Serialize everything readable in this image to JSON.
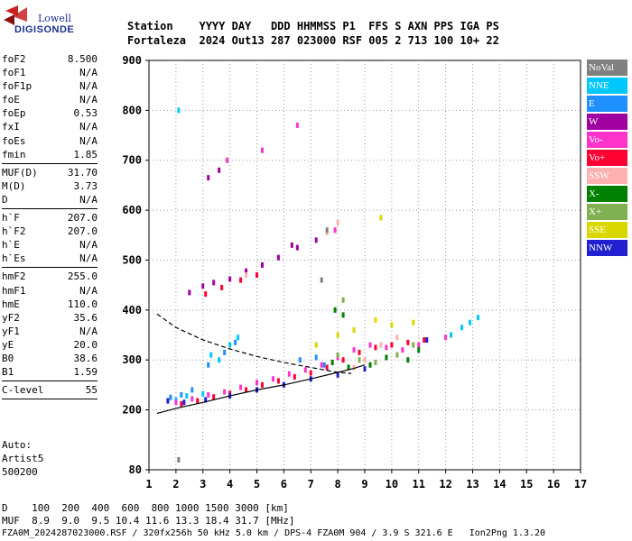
{
  "logo": {
    "line1": "Lowell",
    "line2": "DIGISONDE"
  },
  "header": {
    "line1": "Station    YYYY DAY   DDD HHMMSS P1  FFS S AXN PPS IGA PS",
    "line2": "Fortaleza  2024 Out13 287 023000 RSF 005 2 713 100 10+ 22"
  },
  "params": {
    "group1": [
      {
        "k": "foF2",
        "v": "8.500"
      },
      {
        "k": "foF1",
        "v": "N/A"
      },
      {
        "k": "foF1p",
        "v": "N/A"
      },
      {
        "k": "foE",
        "v": "N/A"
      },
      {
        "k": "foEp",
        "v": "0.53"
      },
      {
        "k": "fxI",
        "v": "N/A"
      },
      {
        "k": "foEs",
        "v": "N/A"
      },
      {
        "k": "fmin",
        "v": "1.85"
      }
    ],
    "group2": [
      {
        "k": "MUF(D)",
        "v": "31.70"
      },
      {
        "k": "M(D)",
        "v": "3.73"
      },
      {
        "k": "D",
        "v": "N/A"
      }
    ],
    "group3": [
      {
        "k": "h`F",
        "v": "207.0"
      },
      {
        "k": "h`F2",
        "v": "207.0"
      },
      {
        "k": "h`E",
        "v": "N/A"
      },
      {
        "k": "h`Es",
        "v": "N/A"
      }
    ],
    "group4": [
      {
        "k": "hmF2",
        "v": "255.0"
      },
      {
        "k": "hmF1",
        "v": "N/A"
      },
      {
        "k": "hmE",
        "v": "110.0"
      },
      {
        "k": "yF2",
        "v": "35.6"
      },
      {
        "k": "yF1",
        "v": "N/A"
      },
      {
        "k": "yE",
        "v": "20.0"
      },
      {
        "k": "B0",
        "v": "38.6"
      },
      {
        "k": "B1",
        "v": "1.59"
      }
    ],
    "group5": [
      {
        "k": "C-level",
        "v": "55"
      }
    ]
  },
  "auto": {
    "line1": "Auto:",
    "line2": "Artist5",
    "line3": "500200"
  },
  "legend": [
    {
      "label": "NoVal",
      "color": "#808080"
    },
    {
      "label": "NNE",
      "color": "#00c8ff"
    },
    {
      "label": "E",
      "color": "#1e90ff"
    },
    {
      "label": "W",
      "color": "#a000a0"
    },
    {
      "label": "Vo-",
      "color": "#ff33cc"
    },
    {
      "label": "Vo+",
      "color": "#ff0033"
    },
    {
      "label": "SSW",
      "color": "#ffb0b0"
    },
    {
      "label": "X-",
      "color": "#008000"
    },
    {
      "label": "X+",
      "color": "#80b050"
    },
    {
      "label": "SSE",
      "color": "#d8d800"
    },
    {
      "label": "NNW",
      "color": "#2020d0"
    }
  ],
  "footer": {
    "d_line": "D    100  200  400  600  800 1000 1500 3000 [km]",
    "muf_line": "MUF  8.9  9.0  9.5 10.4 11.6 13.3 18.4 31.7 [MHz]",
    "info_line": "FZA0M_2024287023000.RSF / 320fx256h 50 kHz 5.0 km / DPS-4 FZA0M 904 / 3.9 S 321.6 E   Ion2Png 1.3.20"
  },
  "chart_data": {
    "type": "scatter",
    "title": "",
    "xlabel": "",
    "ylabel": "",
    "xlim": [
      1,
      17
    ],
    "ylim": [
      80,
      900
    ],
    "x_ticks": [
      1,
      2,
      3,
      4,
      5,
      6,
      7,
      8,
      9,
      10,
      11,
      12,
      13,
      14,
      15,
      16,
      17
    ],
    "y_ticks": [
      80,
      200,
      300,
      400,
      500,
      600,
      700,
      800,
      900
    ],
    "grid": "dotted",
    "legend_placement": "right",
    "series": [
      {
        "name": "NNE",
        "color": "#00c8ff",
        "points": [
          [
            2.0,
            220
          ],
          [
            2.4,
            228
          ],
          [
            3.0,
            232
          ],
          [
            3.3,
            310
          ],
          [
            3.6,
            300
          ],
          [
            4.0,
            330
          ],
          [
            4.3,
            345
          ],
          [
            12.2,
            350
          ],
          [
            12.6,
            365
          ],
          [
            12.9,
            375
          ],
          [
            13.2,
            385
          ],
          [
            2.1,
            800
          ]
        ]
      },
      {
        "name": "E",
        "color": "#1e90ff",
        "points": [
          [
            1.8,
            225
          ],
          [
            2.2,
            230
          ],
          [
            2.6,
            240
          ],
          [
            3.2,
            290
          ],
          [
            3.8,
            315
          ],
          [
            4.2,
            335
          ],
          [
            6.6,
            300
          ],
          [
            7.2,
            305
          ],
          [
            7.5,
            290
          ]
        ]
      },
      {
        "name": "W",
        "color": "#a000a0",
        "points": [
          [
            2.5,
            435
          ],
          [
            3.0,
            448
          ],
          [
            3.4,
            455
          ],
          [
            4.0,
            462
          ],
          [
            4.6,
            478
          ],
          [
            5.2,
            490
          ],
          [
            5.8,
            505
          ],
          [
            6.5,
            525
          ],
          [
            7.2,
            540
          ],
          [
            3.2,
            665
          ],
          [
            3.6,
            680
          ],
          [
            6.3,
            530
          ]
        ]
      },
      {
        "name": "Vo-",
        "color": "#ff33cc",
        "points": [
          [
            2.0,
            215
          ],
          [
            2.6,
            222
          ],
          [
            3.2,
            230
          ],
          [
            3.8,
            236
          ],
          [
            4.4,
            245
          ],
          [
            5.0,
            255
          ],
          [
            5.6,
            262
          ],
          [
            6.2,
            272
          ],
          [
            6.8,
            280
          ],
          [
            7.4,
            290
          ],
          [
            8.0,
            305
          ],
          [
            8.6,
            320
          ],
          [
            9.2,
            330
          ],
          [
            9.8,
            325
          ],
          [
            10.4,
            320
          ],
          [
            11.0,
            330
          ],
          [
            12.0,
            345
          ],
          [
            6.5,
            770
          ],
          [
            5.2,
            720
          ],
          [
            7.9,
            560
          ],
          [
            3.9,
            700
          ]
        ]
      },
      {
        "name": "Vo+",
        "color": "#ff0033",
        "points": [
          [
            2.2,
            212
          ],
          [
            2.8,
            218
          ],
          [
            3.4,
            226
          ],
          [
            4.0,
            233
          ],
          [
            4.6,
            240
          ],
          [
            5.2,
            250
          ],
          [
            5.8,
            258
          ],
          [
            6.4,
            266
          ],
          [
            7.0,
            274
          ],
          [
            7.6,
            285
          ],
          [
            8.2,
            300
          ],
          [
            8.8,
            315
          ],
          [
            9.4,
            325
          ],
          [
            10.0,
            330
          ],
          [
            10.6,
            335
          ],
          [
            11.2,
            340
          ],
          [
            3.1,
            432
          ],
          [
            3.7,
            445
          ],
          [
            4.4,
            460
          ],
          [
            5.0,
            470
          ]
        ]
      },
      {
        "name": "SSW",
        "color": "#ffb0b0",
        "points": [
          [
            8.6,
            285
          ],
          [
            9.0,
            300
          ],
          [
            9.6,
            330
          ],
          [
            10.2,
            345
          ],
          [
            7.6,
            555
          ],
          [
            8.0,
            575
          ],
          [
            4.6,
            470
          ]
        ]
      },
      {
        "name": "X-",
        "color": "#008000",
        "points": [
          [
            7.8,
            295
          ],
          [
            8.4,
            285
          ],
          [
            9.2,
            290
          ],
          [
            9.8,
            305
          ],
          [
            10.6,
            300
          ],
          [
            11.0,
            320
          ],
          [
            7.9,
            400
          ],
          [
            8.2,
            390
          ]
        ]
      },
      {
        "name": "X+",
        "color": "#80b050",
        "points": [
          [
            8.0,
            310
          ],
          [
            8.8,
            300
          ],
          [
            9.4,
            295
          ],
          [
            10.2,
            310
          ],
          [
            10.8,
            330
          ],
          [
            8.2,
            420
          ]
        ]
      },
      {
        "name": "SSE",
        "color": "#d8d800",
        "points": [
          [
            7.2,
            330
          ],
          [
            8.0,
            350
          ],
          [
            8.6,
            360
          ],
          [
            9.4,
            380
          ],
          [
            10.0,
            370
          ],
          [
            10.8,
            375
          ],
          [
            9.6,
            585
          ]
        ]
      },
      {
        "name": "NNW",
        "color": "#2020d0",
        "points": [
          [
            1.7,
            218
          ],
          [
            2.3,
            215
          ],
          [
            3.1,
            220
          ],
          [
            4.0,
            228
          ],
          [
            5.0,
            240
          ],
          [
            6.0,
            250
          ],
          [
            7.0,
            262
          ],
          [
            8.0,
            270
          ],
          [
            9.0,
            282
          ],
          [
            11.3,
            340
          ]
        ]
      },
      {
        "name": "NoVal",
        "color": "#808080",
        "points": [
          [
            2.1,
            100
          ],
          [
            7.6,
            560
          ],
          [
            7.4,
            460
          ]
        ]
      }
    ],
    "trace_solid": {
      "x": [
        1.3,
        2.0,
        3.0,
        4.0,
        5.0,
        6.0,
        7.0,
        8.0,
        8.6,
        9.0
      ],
      "y": [
        193,
        203,
        215,
        228,
        240,
        250,
        262,
        275,
        283,
        290
      ]
    },
    "trace_dashed": {
      "x": [
        1.3,
        2.0,
        3.0,
        4.0,
        5.0,
        6.0,
        7.0,
        8.0,
        8.5
      ],
      "y": [
        392,
        365,
        340,
        322,
        307,
        295,
        285,
        275,
        273
      ]
    }
  }
}
